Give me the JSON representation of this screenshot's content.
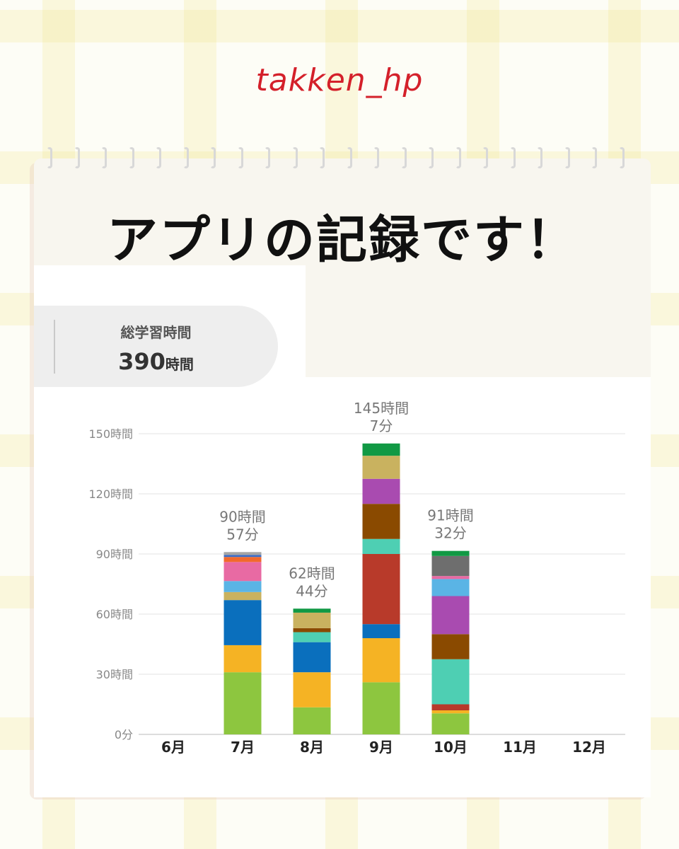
{
  "brand": "takken_hp",
  "headline": "アプリの記録です！",
  "summary": {
    "label": "総学習時間",
    "value": "390",
    "unit": "時間"
  },
  "chart_data": {
    "type": "bar",
    "stacked": true,
    "categories": [
      "6月",
      "7月",
      "8月",
      "9月",
      "10月",
      "11月",
      "12月"
    ],
    "y_ticks": [
      "0分",
      "30時間",
      "60時間",
      "90時間",
      "120時間",
      "150時間"
    ],
    "ylim": [
      0,
      150
    ],
    "grid": true,
    "totals": [
      0,
      90.95,
      62.73,
      145.12,
      91.53,
      0,
      0
    ],
    "total_labels": [
      null,
      [
        "90時間",
        "57分"
      ],
      [
        "62時間",
        "44分"
      ],
      [
        "145時間",
        "7分"
      ],
      [
        "91時間",
        "32分"
      ],
      null,
      null
    ],
    "segments": [
      [],
      [
        {
          "value": 31,
          "color": "#8dc63f"
        },
        {
          "value": 13.5,
          "color": "#f5b324"
        },
        {
          "value": 22.5,
          "color": "#0a6fbd"
        },
        {
          "value": 4,
          "color": "#c9b25f"
        },
        {
          "value": 5.5,
          "color": "#5ab4e5"
        },
        {
          "value": 9.5,
          "color": "#e86aa3"
        },
        {
          "value": 2.5,
          "color": "#f26a2c"
        },
        {
          "value": 1,
          "color": "#3a6cc8"
        },
        {
          "value": 1.45,
          "color": "#a5a5a5"
        }
      ],
      [
        {
          "value": 13.5,
          "color": "#8dc63f"
        },
        {
          "value": 17.5,
          "color": "#f5b324"
        },
        {
          "value": 15,
          "color": "#0a6fbd"
        },
        {
          "value": 5,
          "color": "#4ecfb3"
        },
        {
          "value": 2,
          "color": "#8a4a00"
        },
        {
          "value": 7.73,
          "color": "#c9b25f"
        },
        {
          "value": 2,
          "color": "#119944"
        }
      ],
      [
        {
          "value": 26,
          "color": "#8dc63f"
        },
        {
          "value": 22,
          "color": "#f5b324"
        },
        {
          "value": 7,
          "color": "#0a6fbd"
        },
        {
          "value": 35,
          "color": "#b83a2a"
        },
        {
          "value": 7.5,
          "color": "#4ecfb3"
        },
        {
          "value": 17.5,
          "color": "#8a4a00"
        },
        {
          "value": 12.5,
          "color": "#a94bb0"
        },
        {
          "value": 11.5,
          "color": "#c9b25f"
        },
        {
          "value": 6.12,
          "color": "#119944"
        }
      ],
      [
        {
          "value": 10.5,
          "color": "#8dc63f"
        },
        {
          "value": 1.5,
          "color": "#f5b324"
        },
        {
          "value": 3,
          "color": "#b83a2a"
        },
        {
          "value": 22.5,
          "color": "#4ecfb3"
        },
        {
          "value": 12.5,
          "color": "#8a4a00"
        },
        {
          "value": 19,
          "color": "#a94bb0"
        },
        {
          "value": 8.5,
          "color": "#5ab4e5"
        },
        {
          "value": 1.5,
          "color": "#e86aa3"
        },
        {
          "value": 10,
          "color": "#6e6e6e"
        },
        {
          "value": 2.53,
          "color": "#119944"
        }
      ],
      [],
      []
    ]
  }
}
